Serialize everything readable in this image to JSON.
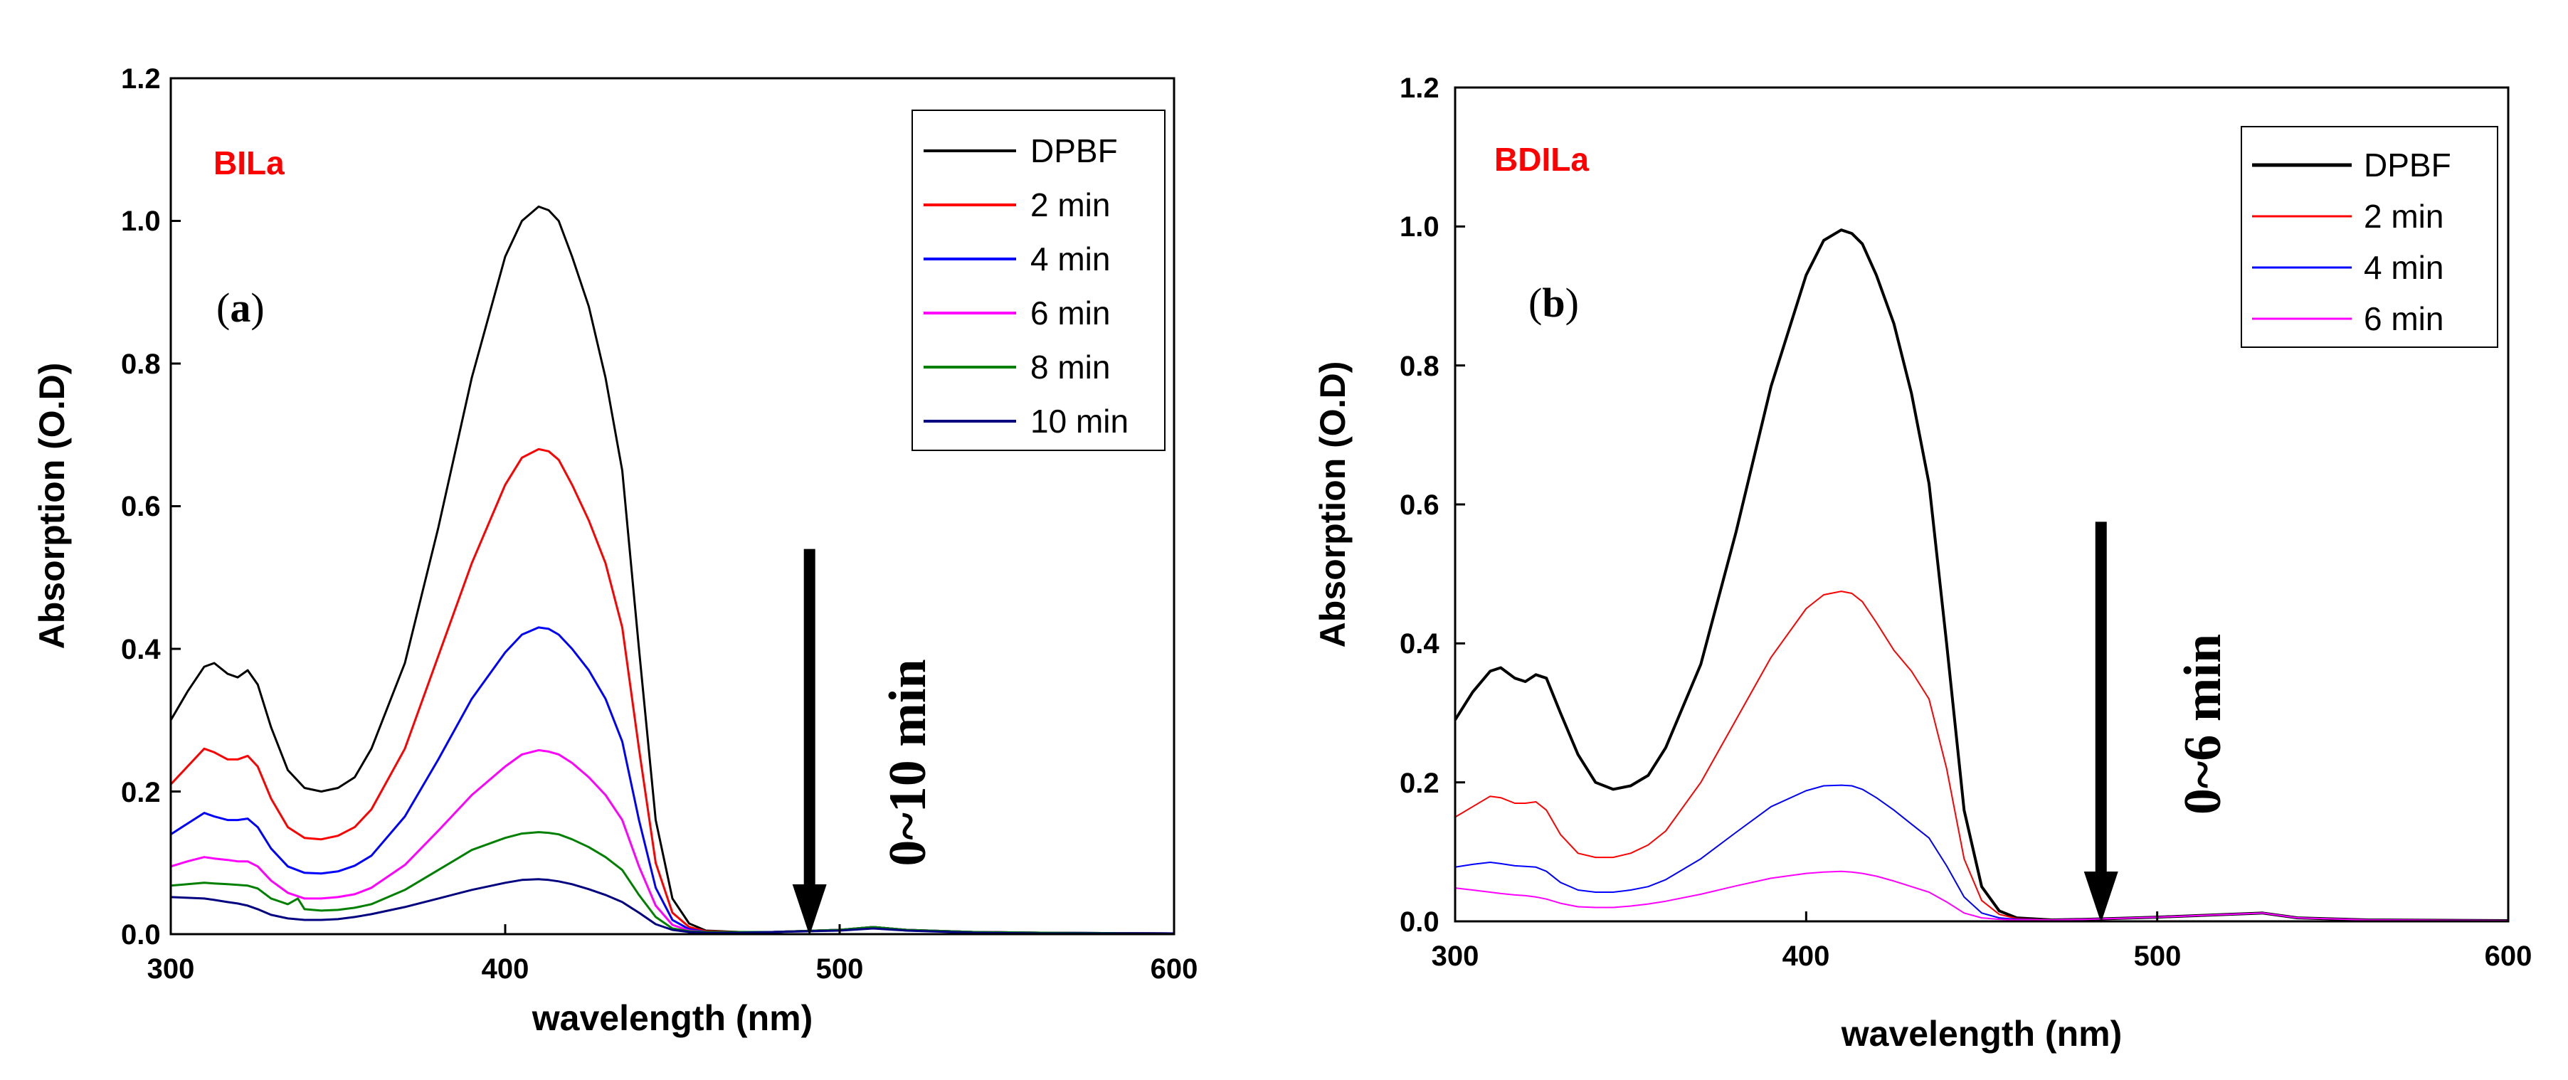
{
  "chart_data": [
    {
      "type": "line",
      "panel": "a",
      "panel_label": {
        "open": "(",
        "letter": "a",
        "close": ")"
      },
      "sample_label": "BILa",
      "sample_color": "#ff0000",
      "xlabel": "wavelength (nm)",
      "ylabel": "Absorption (O.D)",
      "xlim": [
        300,
        600
      ],
      "ylim": [
        0,
        1.2
      ],
      "xticks": [
        "300",
        "400",
        "500",
        "600"
      ],
      "yticks": [
        "0.0",
        "0.2",
        "0.4",
        "0.6",
        "0.8",
        "1.0",
        "1.2"
      ],
      "legend_position": "top-right",
      "arrow": {
        "x": 491,
        "y_start": 0.54,
        "y_end": 0.0,
        "label": "0~10 min"
      },
      "series": [
        {
          "name": "DPBF",
          "color": "#000000",
          "x": [
            300,
            305,
            310,
            313,
            317,
            320,
            323,
            326,
            330,
            335,
            340,
            345,
            350,
            355,
            360,
            370,
            380,
            390,
            400,
            405,
            410,
            413,
            416,
            420,
            425,
            430,
            435,
            440,
            445,
            450,
            455,
            460,
            470,
            480,
            500,
            510,
            520,
            540,
            560,
            600
          ],
          "y": [
            0.3,
            0.34,
            0.375,
            0.38,
            0.365,
            0.36,
            0.37,
            0.35,
            0.29,
            0.23,
            0.205,
            0.2,
            0.205,
            0.22,
            0.26,
            0.38,
            0.57,
            0.78,
            0.95,
            1.0,
            1.02,
            1.015,
            1.0,
            0.95,
            0.88,
            0.78,
            0.65,
            0.4,
            0.16,
            0.05,
            0.015,
            0.005,
            0.003,
            0.003,
            0.006,
            0.01,
            0.006,
            0.003,
            0.002,
            0.001
          ]
        },
        {
          "name": "2 min",
          "color": "#ff0000",
          "x": [
            300,
            305,
            310,
            313,
            317,
            320,
            323,
            326,
            330,
            335,
            340,
            345,
            350,
            355,
            360,
            370,
            380,
            390,
            400,
            405,
            410,
            413,
            416,
            420,
            425,
            430,
            435,
            440,
            445,
            450,
            455,
            460,
            470,
            480,
            500,
            510,
            520,
            540,
            560,
            600
          ],
          "y": [
            0.21,
            0.235,
            0.26,
            0.255,
            0.245,
            0.245,
            0.25,
            0.235,
            0.19,
            0.15,
            0.135,
            0.133,
            0.138,
            0.15,
            0.175,
            0.26,
            0.39,
            0.52,
            0.63,
            0.668,
            0.68,
            0.677,
            0.665,
            0.63,
            0.58,
            0.52,
            0.43,
            0.26,
            0.1,
            0.03,
            0.01,
            0.004,
            0.003,
            0.003,
            0.006,
            0.01,
            0.006,
            0.003,
            0.002,
            0.001
          ]
        },
        {
          "name": "4 min",
          "color": "#0000ff",
          "x": [
            300,
            305,
            310,
            313,
            317,
            320,
            323,
            326,
            330,
            335,
            340,
            345,
            350,
            355,
            360,
            370,
            380,
            390,
            400,
            405,
            410,
            413,
            416,
            420,
            425,
            430,
            435,
            440,
            445,
            450,
            455,
            460,
            470,
            480,
            500,
            510,
            520,
            540,
            560,
            600
          ],
          "y": [
            0.14,
            0.155,
            0.17,
            0.165,
            0.16,
            0.16,
            0.162,
            0.15,
            0.12,
            0.095,
            0.086,
            0.085,
            0.088,
            0.096,
            0.11,
            0.165,
            0.245,
            0.33,
            0.395,
            0.42,
            0.43,
            0.428,
            0.42,
            0.4,
            0.37,
            0.33,
            0.27,
            0.16,
            0.065,
            0.02,
            0.007,
            0.003,
            0.003,
            0.003,
            0.006,
            0.01,
            0.006,
            0.003,
            0.002,
            0.001
          ]
        },
        {
          "name": "6 min",
          "color": "#ff00ff",
          "x": [
            300,
            305,
            310,
            313,
            317,
            320,
            323,
            326,
            330,
            335,
            340,
            345,
            350,
            355,
            360,
            370,
            380,
            390,
            400,
            405,
            410,
            413,
            416,
            420,
            425,
            430,
            435,
            440,
            445,
            450,
            455,
            460,
            470,
            480,
            500,
            510,
            520,
            540,
            560,
            600
          ],
          "y": [
            0.095,
            0.102,
            0.108,
            0.106,
            0.104,
            0.102,
            0.102,
            0.095,
            0.075,
            0.058,
            0.05,
            0.05,
            0.052,
            0.056,
            0.065,
            0.097,
            0.145,
            0.195,
            0.235,
            0.252,
            0.258,
            0.256,
            0.252,
            0.24,
            0.22,
            0.195,
            0.16,
            0.095,
            0.04,
            0.013,
            0.005,
            0.003,
            0.003,
            0.003,
            0.006,
            0.01,
            0.006,
            0.003,
            0.002,
            0.001
          ]
        },
        {
          "name": "8 min",
          "color": "#008000",
          "x": [
            300,
            305,
            310,
            313,
            317,
            320,
            323,
            326,
            330,
            335,
            338,
            340,
            345,
            350,
            355,
            360,
            370,
            380,
            390,
            400,
            405,
            410,
            413,
            416,
            420,
            425,
            430,
            435,
            440,
            445,
            450,
            455,
            460,
            470,
            480,
            500,
            510,
            520,
            540,
            560,
            600
          ],
          "y": [
            0.068,
            0.07,
            0.072,
            0.071,
            0.07,
            0.069,
            0.068,
            0.064,
            0.05,
            0.042,
            0.05,
            0.035,
            0.033,
            0.034,
            0.037,
            0.042,
            0.062,
            0.09,
            0.118,
            0.135,
            0.141,
            0.143,
            0.142,
            0.14,
            0.133,
            0.122,
            0.108,
            0.09,
            0.055,
            0.024,
            0.008,
            0.004,
            0.003,
            0.003,
            0.003,
            0.006,
            0.01,
            0.006,
            0.003,
            0.002,
            0.001
          ]
        },
        {
          "name": "10 min",
          "color": "#000080",
          "x": [
            300,
            305,
            310,
            313,
            317,
            320,
            323,
            326,
            330,
            335,
            340,
            345,
            350,
            355,
            360,
            370,
            380,
            390,
            400,
            405,
            410,
            413,
            416,
            420,
            425,
            430,
            435,
            440,
            445,
            450,
            455,
            460,
            470,
            480,
            500,
            510,
            520,
            540,
            560,
            600
          ],
          "y": [
            0.052,
            0.051,
            0.05,
            0.048,
            0.045,
            0.043,
            0.04,
            0.035,
            0.027,
            0.022,
            0.02,
            0.02,
            0.021,
            0.024,
            0.028,
            0.038,
            0.05,
            0.062,
            0.072,
            0.076,
            0.077,
            0.076,
            0.074,
            0.07,
            0.063,
            0.055,
            0.045,
            0.03,
            0.014,
            0.006,
            0.003,
            0.002,
            0.002,
            0.003,
            0.005,
            0.008,
            0.005,
            0.002,
            0.001,
            0.001
          ]
        }
      ]
    },
    {
      "type": "line",
      "panel": "b",
      "panel_label": {
        "open": "(",
        "letter": "b",
        "close": ")"
      },
      "sample_label": "BDILa",
      "sample_color": "#ff0000",
      "xlabel": "wavelength (nm)",
      "ylabel": "Absorption (O.D)",
      "xlim": [
        300,
        600
      ],
      "ylim": [
        0,
        1.2
      ],
      "xticks": [
        "300",
        "400",
        "500",
        "600"
      ],
      "yticks": [
        "0.0",
        "0.2",
        "0.4",
        "0.6",
        "0.8",
        "1.0",
        "1.2"
      ],
      "legend_position": "top-right",
      "arrow": {
        "x": 484,
        "y_start": 0.575,
        "y_end": 0.0,
        "label": "0~6 min"
      },
      "series": [
        {
          "name": "DPBF",
          "color": "#000000",
          "x": [
            300,
            305,
            310,
            313,
            317,
            320,
            323,
            326,
            330,
            335,
            340,
            345,
            350,
            355,
            360,
            370,
            380,
            390,
            400,
            405,
            410,
            413,
            416,
            420,
            425,
            430,
            435,
            440,
            445,
            450,
            455,
            460,
            470,
            480,
            500,
            520,
            530,
            540,
            560,
            600
          ],
          "y": [
            0.29,
            0.33,
            0.36,
            0.365,
            0.35,
            0.345,
            0.355,
            0.35,
            0.3,
            0.24,
            0.2,
            0.19,
            0.195,
            0.21,
            0.25,
            0.37,
            0.56,
            0.77,
            0.93,
            0.98,
            0.995,
            0.99,
            0.975,
            0.93,
            0.86,
            0.76,
            0.63,
            0.4,
            0.16,
            0.05,
            0.015,
            0.005,
            0.002,
            0.003,
            0.006,
            0.01,
            0.012,
            0.005,
            0.002,
            0.001
          ]
        },
        {
          "name": "2 min",
          "color": "#ff0000",
          "x": [
            300,
            305,
            310,
            313,
            317,
            320,
            323,
            326,
            330,
            335,
            340,
            345,
            350,
            355,
            360,
            370,
            380,
            390,
            400,
            405,
            410,
            413,
            416,
            420,
            425,
            430,
            435,
            440,
            445,
            450,
            455,
            460,
            470,
            480,
            500,
            520,
            530,
            540,
            560,
            600
          ],
          "y": [
            0.15,
            0.165,
            0.18,
            0.178,
            0.17,
            0.17,
            0.172,
            0.16,
            0.125,
            0.098,
            0.092,
            0.092,
            0.098,
            0.11,
            0.13,
            0.2,
            0.29,
            0.38,
            0.45,
            0.47,
            0.475,
            0.472,
            0.46,
            0.43,
            0.39,
            0.36,
            0.32,
            0.22,
            0.09,
            0.03,
            0.01,
            0.004,
            0.002,
            0.003,
            0.006,
            0.01,
            0.012,
            0.005,
            0.002,
            0.001
          ]
        },
        {
          "name": "4 min",
          "color": "#0000ff",
          "x": [
            300,
            305,
            310,
            313,
            317,
            320,
            323,
            326,
            330,
            335,
            340,
            345,
            350,
            355,
            360,
            370,
            380,
            390,
            400,
            405,
            410,
            413,
            416,
            420,
            425,
            430,
            435,
            440,
            445,
            450,
            455,
            460,
            470,
            480,
            500,
            520,
            530,
            540,
            560,
            600
          ],
          "y": [
            0.078,
            0.082,
            0.085,
            0.083,
            0.08,
            0.079,
            0.078,
            0.072,
            0.056,
            0.045,
            0.042,
            0.042,
            0.045,
            0.05,
            0.06,
            0.09,
            0.128,
            0.165,
            0.188,
            0.195,
            0.196,
            0.195,
            0.19,
            0.178,
            0.16,
            0.14,
            0.12,
            0.08,
            0.035,
            0.012,
            0.005,
            0.003,
            0.002,
            0.003,
            0.006,
            0.01,
            0.012,
            0.005,
            0.002,
            0.001
          ]
        },
        {
          "name": "6 min",
          "color": "#ff00ff",
          "x": [
            300,
            305,
            310,
            313,
            317,
            320,
            323,
            326,
            330,
            335,
            340,
            345,
            350,
            355,
            360,
            370,
            380,
            390,
            400,
            405,
            410,
            413,
            416,
            420,
            425,
            430,
            435,
            440,
            445,
            450,
            455,
            460,
            470,
            480,
            500,
            520,
            530,
            540,
            560,
            600
          ],
          "y": [
            0.048,
            0.045,
            0.042,
            0.04,
            0.038,
            0.037,
            0.035,
            0.032,
            0.026,
            0.021,
            0.02,
            0.02,
            0.022,
            0.025,
            0.029,
            0.039,
            0.051,
            0.062,
            0.069,
            0.071,
            0.072,
            0.071,
            0.069,
            0.065,
            0.058,
            0.05,
            0.042,
            0.028,
            0.012,
            0.005,
            0.003,
            0.002,
            0.002,
            0.003,
            0.006,
            0.01,
            0.012,
            0.005,
            0.002,
            0.001
          ]
        }
      ]
    }
  ]
}
